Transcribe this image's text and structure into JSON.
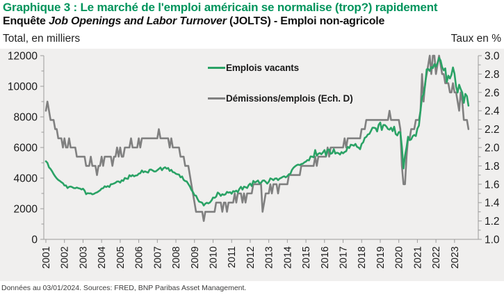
{
  "header": {
    "title": "Graphique 3 : Le marché de l'emploi américain se normalise (trop?) rapidement",
    "subtitle_prefix": "Enquête ",
    "subtitle_italic": "Job Openings and Labor Turnover",
    "subtitle_suffix": " (JOLTS) - Emploi non-agricole"
  },
  "footer": {
    "source_note": "Données au 03/01/2024. Sources: FRED, BNP Paribas Asset Management."
  },
  "colors": {
    "title_green": "#00945C",
    "openings_line": "#2aa265",
    "quits_line": "#808080",
    "plot_background": "#f0efee",
    "axis": "#9b9b9b",
    "tick_text": "#1a1a1a"
  },
  "chart_data": {
    "type": "line",
    "frequency": "monthly",
    "x_start": "2001-01",
    "x_end": "2023-10",
    "grid": false,
    "legend_position": "top-center",
    "x_tick_labels": [
      "2001",
      "2002",
      "2003",
      "2004",
      "2005",
      "2006",
      "2007",
      "2008",
      "2009",
      "2010",
      "2011",
      "2012",
      "2013",
      "2014",
      "2015",
      "2016",
      "2017",
      "2018",
      "2019",
      "2020",
      "2021",
      "2022",
      "2023"
    ],
    "left_axis": {
      "title": "Total, en milliers",
      "range": [
        0,
        12000
      ],
      "tick_step": 2000,
      "minor_step": 1000,
      "tick_labels": [
        "0",
        "2000",
        "4000",
        "6000",
        "8000",
        "10000",
        "12000"
      ]
    },
    "right_axis": {
      "title": "Taux en %",
      "range": [
        1.0,
        3.0
      ],
      "tick_step": 0.2,
      "minor_step": 0.1,
      "tick_labels": [
        "1.0",
        "1.2",
        "1.4",
        "1.6",
        "1.8",
        "2.0",
        "2.2",
        "2.4",
        "2.6",
        "2.8",
        "3.0"
      ]
    },
    "series": [
      {
        "name": "Emplois vacants",
        "axis": "left",
        "color": "#2aa265",
        "values": [
          5100,
          5000,
          4700,
          4600,
          4450,
          4270,
          4110,
          3980,
          3880,
          3820,
          3730,
          3670,
          3520,
          3520,
          3350,
          3430,
          3450,
          3410,
          3350,
          3340,
          3380,
          3340,
          3320,
          3260,
          3310,
          3180,
          2950,
          3020,
          3000,
          3010,
          2940,
          2970,
          3030,
          3070,
          3130,
          3200,
          3320,
          3340,
          3470,
          3420,
          3480,
          3420,
          3600,
          3610,
          3650,
          3700,
          3780,
          3780,
          3710,
          3860,
          3820,
          4010,
          3970,
          3950,
          4190,
          4120,
          4200,
          4120,
          4170,
          4180,
          4290,
          4320,
          4500,
          4380,
          4440,
          4400,
          4360,
          4550,
          4560,
          4500,
          4430,
          4440,
          4520,
          4600,
          4690,
          4520,
          4650,
          4710,
          4620,
          4660,
          4470,
          4540,
          4390,
          4370,
          4280,
          4250,
          4230,
          4050,
          4110,
          3880,
          3810,
          3780,
          3620,
          3460,
          3230,
          3090,
          2880,
          2850,
          2630,
          2460,
          2430,
          2390,
          2210,
          2330,
          2390,
          2350,
          2410,
          2540,
          2730,
          2710,
          2790,
          3060,
          2980,
          2840,
          2950,
          2900,
          2940,
          3100,
          3050,
          3080,
          2980,
          3150,
          3120,
          3180,
          3080,
          3290,
          3430,
          3250,
          3440,
          3410,
          3350,
          3540,
          3640,
          3480,
          3820,
          3720,
          3770,
          3840,
          3670,
          3690,
          3830,
          3850,
          3760,
          3640,
          3760,
          3980,
          3940,
          3870,
          3970,
          3980,
          3870,
          3970,
          4020,
          4080,
          4120,
          4050,
          4130,
          4250,
          4290,
          4540,
          4680,
          4770,
          4840,
          4880,
          4850,
          4920,
          4940,
          5030,
          5080,
          5180,
          5160,
          5420,
          5400,
          5360,
          5830,
          5470,
          5590,
          5640,
          5560,
          5680,
          5830,
          5480,
          5850,
          5870,
          5590,
          5630,
          5890,
          5600,
          5660,
          5630,
          5540,
          5700,
          5620,
          5710,
          5760,
          6040,
          5970,
          6180,
          6160,
          6120,
          6230,
          6040,
          5990,
          5890,
          6230,
          6340,
          6630,
          6690,
          6850,
          6890,
          7080,
          7290,
          7290,
          7260,
          7050,
          7480,
          7630,
          7140,
          7470,
          7470,
          7370,
          7210,
          7170,
          7290,
          7070,
          7360,
          6880,
          6790,
          7010,
          7000,
          6040,
          4630,
          5460,
          6000,
          6700,
          6480,
          6530,
          6740,
          6820,
          6750,
          7230,
          7430,
          8400,
          9290,
          9480,
          10070,
          11100,
          11130,
          11000,
          11260,
          11190,
          11450,
          11280,
          11510,
          11860,
          11680,
          11250,
          11040,
          11170,
          10280,
          10690,
          10510,
          10750,
          11230,
          10820,
          9970,
          9590,
          10100,
          9820,
          9580,
          8920,
          9500,
          9350,
          8730
        ]
      },
      {
        "name": "Démissions/emplois (Ech. D)",
        "axis": "right",
        "color": "#808080",
        "values": [
          2.4,
          2.5,
          2.4,
          2.3,
          2.3,
          2.3,
          2.2,
          2.2,
          2.1,
          2.1,
          2.1,
          2.0,
          2.1,
          2.0,
          2.0,
          2.1,
          2.0,
          2.0,
          2.0,
          2.0,
          1.9,
          1.9,
          1.9,
          1.9,
          1.9,
          1.9,
          1.8,
          1.8,
          1.8,
          1.9,
          1.8,
          1.8,
          1.8,
          1.7,
          1.8,
          1.8,
          1.9,
          1.8,
          1.9,
          1.9,
          1.9,
          1.9,
          1.9,
          1.8,
          1.9,
          1.9,
          2.0,
          1.9,
          2.0,
          1.9,
          1.9,
          2.0,
          2.0,
          2.0,
          2.0,
          2.1,
          2.0,
          2.0,
          2.0,
          2.0,
          2.1,
          2.0,
          2.1,
          2.1,
          2.1,
          2.1,
          2.1,
          2.1,
          2.1,
          2.1,
          2.1,
          2.1,
          2.1,
          2.2,
          2.1,
          2.1,
          2.1,
          2.1,
          2.1,
          2.1,
          2.0,
          2.1,
          2.0,
          2.0,
          2.0,
          2.0,
          2.0,
          1.9,
          1.9,
          1.9,
          1.8,
          1.8,
          1.8,
          1.7,
          1.6,
          1.5,
          1.4,
          1.3,
          1.3,
          1.3,
          1.3,
          1.3,
          1.2,
          1.3,
          1.3,
          1.3,
          1.3,
          1.3,
          1.3,
          1.3,
          1.4,
          1.4,
          1.4,
          1.4,
          1.3,
          1.4,
          1.4,
          1.3,
          1.4,
          1.4,
          1.4,
          1.4,
          1.5,
          1.4,
          1.5,
          1.5,
          1.5,
          1.4,
          1.5,
          1.4,
          1.5,
          1.5,
          1.5,
          1.5,
          1.6,
          1.6,
          1.6,
          1.6,
          1.6,
          1.6,
          1.3,
          1.4,
          1.5,
          1.5,
          1.5,
          1.6,
          1.5,
          1.6,
          1.6,
          1.6,
          1.5,
          1.6,
          1.6,
          1.6,
          1.6,
          1.6,
          1.6,
          1.7,
          1.7,
          1.7,
          1.7,
          1.7,
          1.7,
          1.7,
          1.7,
          1.8,
          1.8,
          1.8,
          1.8,
          1.8,
          1.8,
          1.8,
          1.8,
          1.8,
          1.9,
          1.8,
          1.9,
          1.9,
          1.9,
          1.9,
          1.9,
          1.9,
          2.0,
          1.9,
          2.0,
          2.0,
          2.0,
          2.0,
          2.0,
          2.0,
          2.0,
          2.0,
          2.0,
          2.1,
          2.0,
          2.1,
          2.1,
          2.1,
          2.1,
          2.1,
          2.1,
          2.1,
          2.1,
          2.1,
          2.2,
          2.2,
          2.2,
          2.3,
          2.3,
          2.3,
          2.3,
          2.3,
          2.3,
          2.3,
          2.3,
          2.3,
          2.3,
          2.3,
          2.3,
          2.3,
          2.3,
          2.3,
          2.4,
          2.3,
          2.3,
          2.3,
          2.3,
          2.3,
          2.3,
          2.2,
          1.8,
          1.6,
          1.6,
          1.9,
          2.1,
          2.1,
          2.2,
          2.2,
          2.2,
          2.3,
          2.3,
          2.3,
          2.4,
          2.8,
          2.5,
          2.7,
          2.8,
          2.9,
          3.0,
          2.8,
          3.0,
          3.0,
          2.8,
          2.9,
          3.0,
          2.9,
          2.8,
          2.8,
          2.7,
          2.7,
          2.7,
          2.6,
          2.6,
          2.7,
          2.6,
          2.6,
          2.5,
          2.4,
          2.6,
          2.5,
          2.3,
          2.3,
          2.3,
          2.2
        ]
      }
    ]
  }
}
